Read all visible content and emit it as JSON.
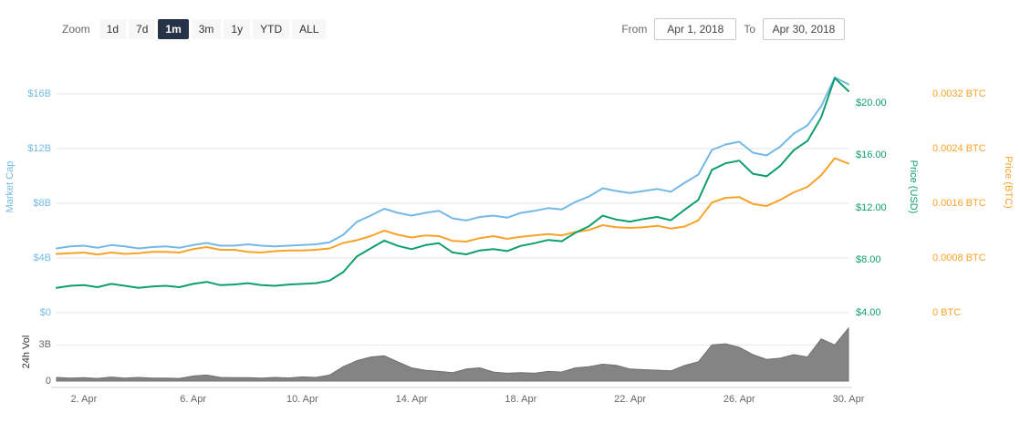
{
  "toolbar": {
    "zoom_label": "Zoom",
    "zoom_buttons": [
      {
        "label": "1d",
        "selected": false
      },
      {
        "label": "7d",
        "selected": false
      },
      {
        "label": "1m",
        "selected": true
      },
      {
        "label": "3m",
        "selected": false
      },
      {
        "label": "1y",
        "selected": false
      },
      {
        "label": "YTD",
        "selected": false
      },
      {
        "label": "ALL",
        "selected": false
      }
    ],
    "from_label": "From",
    "from_value": "Apr 1, 2018",
    "to_label": "To",
    "to_value": "Apr 30, 2018"
  },
  "colors": {
    "button_selected_bg": "#263248",
    "button_selected_text": "#ffffff",
    "button_bg": "#f7f7f7",
    "grid": "#e6e6e6",
    "axis_line": "#d0d0d0",
    "text_muted": "#666666"
  },
  "chart_data": {
    "type": "line",
    "x_axis": {
      "unit": "date",
      "month": "Apr 2018",
      "range_days": [
        1,
        30
      ],
      "start_day": 1,
      "step_days": 0.5,
      "tick_days": [
        2,
        6,
        10,
        14,
        18,
        22,
        26,
        30
      ],
      "tick_labels": [
        "2. Apr",
        "6. Apr",
        "10. Apr",
        "14. Apr",
        "18. Apr",
        "22. Apr",
        "26. Apr",
        "30. Apr"
      ]
    },
    "axes": {
      "market_cap": {
        "label": "Market Cap",
        "side": "left",
        "color": "#74b9e6",
        "unit": "USD billions",
        "tick_labels": [
          "$0",
          "$4B",
          "$8B",
          "$12B",
          "$16B"
        ],
        "tick_values": [
          0,
          4,
          8,
          12,
          16
        ],
        "range": [
          0,
          18.87
        ]
      },
      "price_usd": {
        "label": "Price (USD)",
        "side": "right",
        "color": "#0f9e6e",
        "unit": "USD",
        "tick_labels": [
          "$4.00",
          "$8.00",
          "$12.00",
          "$16.00",
          "$20.00"
        ],
        "tick_values": [
          4,
          8,
          12,
          16,
          20
        ],
        "range": [
          4,
          23.68
        ]
      },
      "price_btc": {
        "label": "Price (BTC)",
        "side": "far-right",
        "color": "#f7a228",
        "unit": "BTC",
        "tick_labels": [
          "0 BTC",
          "0.0008 BTC",
          "0.0016 BTC",
          "0.0024 BTC",
          "0.0032 BTC"
        ],
        "tick_values": [
          0,
          0.0008,
          0.0016,
          0.0024,
          0.0032
        ],
        "range": [
          0,
          0.003773
        ]
      },
      "volume": {
        "label": "24h Vol",
        "side": "left",
        "color": "#666666",
        "unit": "USD billions",
        "tick_labels": [
          "0",
          "3B"
        ],
        "tick_values": [
          0,
          3
        ],
        "range": [
          0,
          5
        ]
      }
    },
    "series": [
      {
        "name": "Market Cap",
        "axis": "market_cap",
        "color": "#74b9e6",
        "style": "line",
        "values": [
          4.7,
          4.85,
          4.9,
          4.75,
          4.95,
          4.85,
          4.7,
          4.8,
          4.85,
          4.75,
          4.95,
          5.1,
          4.9,
          4.9,
          5.0,
          4.9,
          4.85,
          4.9,
          4.95,
          5.0,
          5.15,
          5.7,
          6.65,
          7.1,
          7.6,
          7.3,
          7.1,
          7.3,
          7.45,
          6.9,
          6.75,
          7.0,
          7.1,
          6.95,
          7.3,
          7.45,
          7.65,
          7.55,
          8.1,
          8.5,
          9.1,
          8.9,
          8.75,
          8.9,
          9.05,
          8.85,
          9.5,
          10.1,
          11.9,
          12.3,
          12.5,
          11.7,
          11.5,
          12.15,
          13.1,
          13.7,
          15.1,
          17.2,
          16.7
        ]
      },
      {
        "name": "Price (USD)",
        "axis": "price_usd",
        "color": "#0f9e6e",
        "style": "line",
        "values": [
          5.9,
          6.05,
          6.1,
          5.95,
          6.2,
          6.05,
          5.9,
          6.0,
          6.05,
          5.95,
          6.2,
          6.35,
          6.1,
          6.15,
          6.25,
          6.1,
          6.05,
          6.15,
          6.2,
          6.25,
          6.45,
          7.1,
          8.3,
          8.9,
          9.5,
          9.1,
          8.85,
          9.15,
          9.3,
          8.6,
          8.45,
          8.75,
          8.85,
          8.7,
          9.1,
          9.3,
          9.55,
          9.45,
          10.1,
          10.6,
          11.4,
          11.1,
          10.95,
          11.15,
          11.3,
          11.05,
          11.85,
          12.6,
          14.9,
          15.4,
          15.6,
          14.6,
          14.4,
          15.2,
          16.4,
          17.1,
          18.9,
          21.9,
          20.9
        ]
      },
      {
        "name": "Price (BTC)",
        "axis": "price_btc",
        "color": "#f7a228",
        "style": "line",
        "values": [
          0.00086,
          0.00087,
          0.00088,
          0.00085,
          0.00088,
          0.00086,
          0.00087,
          0.00089,
          0.00089,
          0.00088,
          0.00093,
          0.00096,
          0.00092,
          0.00092,
          0.00089,
          0.00088,
          0.0009,
          0.00091,
          0.00091,
          0.00092,
          0.00094,
          0.00102,
          0.00106,
          0.00112,
          0.0012,
          0.00114,
          0.0011,
          0.00113,
          0.00112,
          0.00105,
          0.00104,
          0.00109,
          0.00112,
          0.00108,
          0.00111,
          0.00113,
          0.00115,
          0.00113,
          0.00118,
          0.00121,
          0.00128,
          0.00125,
          0.00124,
          0.00125,
          0.00127,
          0.00123,
          0.00126,
          0.00135,
          0.00161,
          0.00168,
          0.00169,
          0.00159,
          0.00156,
          0.00165,
          0.00176,
          0.00184,
          0.00201,
          0.00226,
          0.00218
        ]
      },
      {
        "name": "24h Vol",
        "axis": "volume",
        "color": "#848484",
        "style": "area",
        "values": [
          0.3,
          0.25,
          0.28,
          0.22,
          0.33,
          0.25,
          0.3,
          0.24,
          0.25,
          0.22,
          0.42,
          0.5,
          0.3,
          0.28,
          0.28,
          0.25,
          0.3,
          0.26,
          0.35,
          0.3,
          0.5,
          1.2,
          1.7,
          2.0,
          2.1,
          1.6,
          1.1,
          0.9,
          0.8,
          0.7,
          1.0,
          1.1,
          0.75,
          0.65,
          0.7,
          0.65,
          0.8,
          0.75,
          1.1,
          1.2,
          1.4,
          1.3,
          1.0,
          0.95,
          0.9,
          0.85,
          1.3,
          1.6,
          3.0,
          3.1,
          2.8,
          2.2,
          1.8,
          1.9,
          2.2,
          2.0,
          3.5,
          3.0,
          4.4
        ]
      }
    ]
  }
}
